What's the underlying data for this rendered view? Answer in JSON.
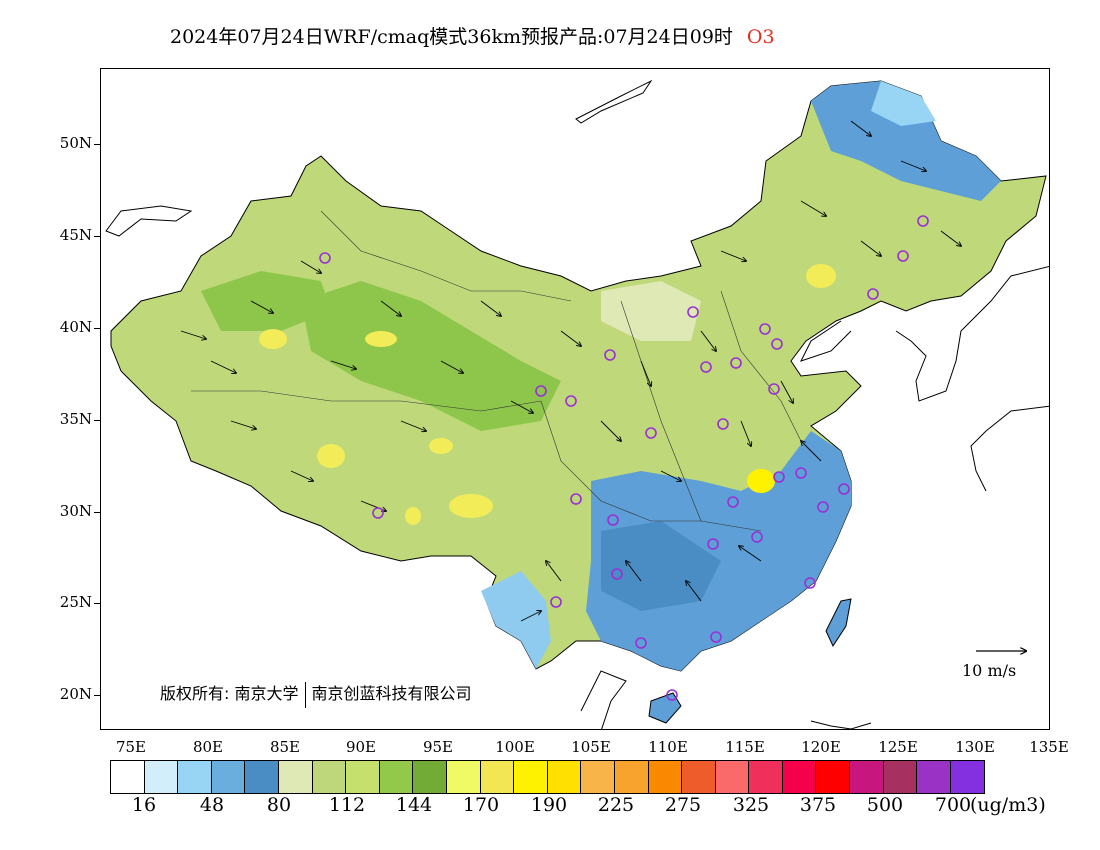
{
  "title": {
    "main": "2024年07月24日WRF/cmaq模式36km预报产品:07月24日09时",
    "species": "O3"
  },
  "axes": {
    "lat_ticks": [
      "50N",
      "45N",
      "40N",
      "35N",
      "30N",
      "25N",
      "20N"
    ],
    "lon_ticks": [
      "75E",
      "80E",
      "85E",
      "90E",
      "95E",
      "100E",
      "105E",
      "110E",
      "115E",
      "120E",
      "125E",
      "130E",
      "135E"
    ]
  },
  "copyright": {
    "prefix": "版权所有:",
    "org1": "南京大学",
    "org2": "南京创蓝科技有限公司"
  },
  "wind_reference": {
    "label": "10 m/s"
  },
  "colorbar": {
    "colors": [
      "#ffffff",
      "#d2eefa",
      "#98d5f4",
      "#6aaedd",
      "#4a8cc4",
      "#dfe9b5",
      "#bdd77a",
      "#c6e06e",
      "#93c94b",
      "#72ab35",
      "#f0fa64",
      "#f2e654",
      "#fff200",
      "#ffe000",
      "#f8b448",
      "#f7a32e",
      "#f98a00",
      "#ef5c2c",
      "#fa6a6a",
      "#f0305a",
      "#f5004a",
      "#ff0000",
      "#c8167f",
      "#a6305f",
      "#9b32c6",
      "#8530e0"
    ],
    "labels": [
      "16",
      "48",
      "80",
      "112",
      "144",
      "170",
      "190",
      "225",
      "275",
      "325",
      "375",
      "500",
      "700"
    ],
    "unit": "(ug/m3)"
  },
  "colors": {
    "ocean": "#ffffff",
    "coast": "#000000",
    "station_marker": "#9b2fd6",
    "title_species": "#e0301e"
  }
}
